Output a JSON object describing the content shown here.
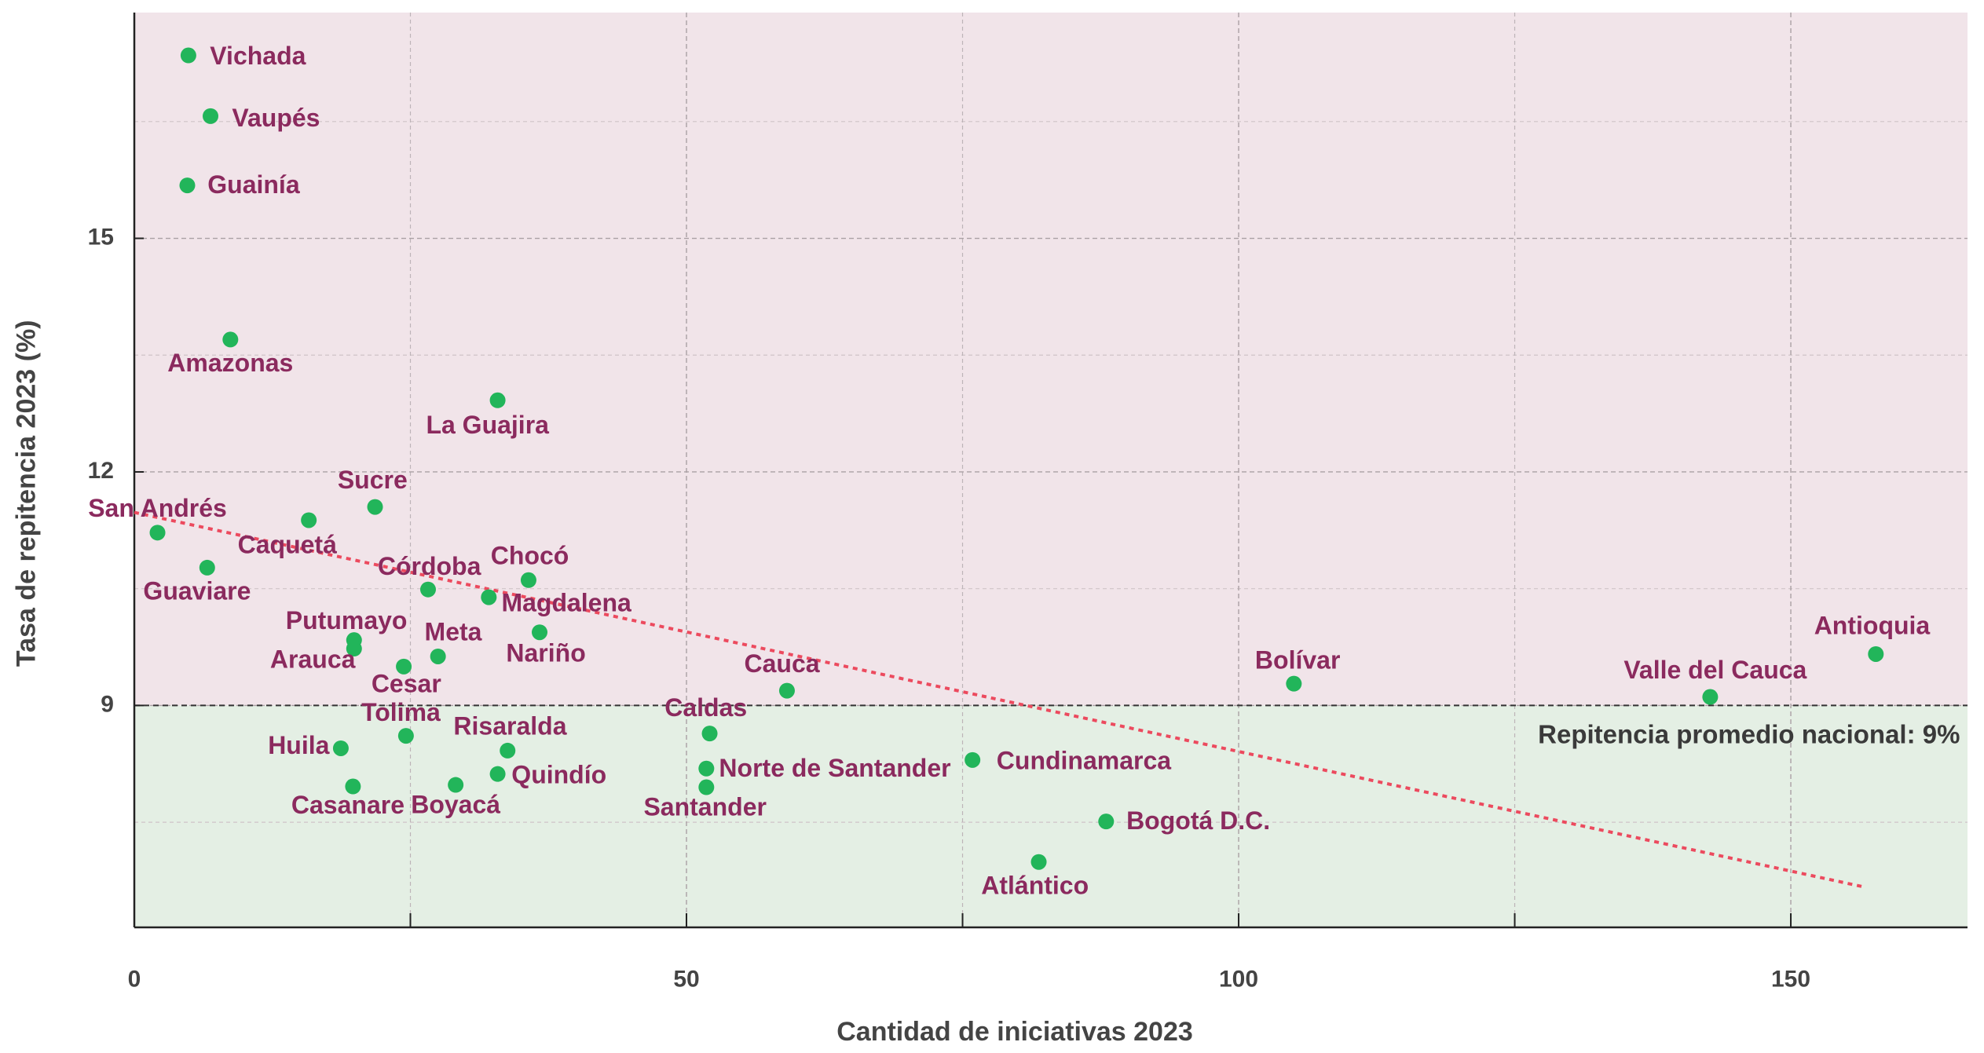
{
  "chart_data": {
    "type": "scatter",
    "x_label": "Cantidad de iniciativas 2023",
    "y_label": "Tasa de repitencia 2023 (%)",
    "labels": [
      "Vichada",
      "Vaupés",
      "Guainía",
      "Amazonas",
      "La Guajira",
      "Sucre",
      "San Andrés",
      "Caquetá",
      "Guaviare",
      "Córdoba",
      "Chocó",
      "Magdalena",
      "Nariño",
      "Putumayo",
      "Arauca",
      "Meta",
      "Cesar",
      "Cauca",
      "Bolívar",
      "Valle del Cauca",
      "Antioquia",
      "Tolima",
      "Caldas",
      "Risaralda",
      "Huila",
      "Quindío",
      "Norte de Santander",
      "Cundinamarca",
      "Casanare",
      "Boyacá",
      "Santander",
      "Bogotá D.C.",
      "Atlántico"
    ],
    "x": [
      4.9,
      6.9,
      4.8,
      8.7,
      32.9,
      21.8,
      2.1,
      15.8,
      6.6,
      26.6,
      35.7,
      32.1,
      36.7,
      19.9,
      19.9,
      27.5,
      24.4,
      59.1,
      105.0,
      142.7,
      157.7,
      24.6,
      52.1,
      33.8,
      18.7,
      32.9,
      51.8,
      75.9,
      19.8,
      29.1,
      51.8,
      88.0,
      81.9
    ],
    "values": [
      17.35,
      16.57,
      15.68,
      13.7,
      12.92,
      11.55,
      11.22,
      11.38,
      10.77,
      10.49,
      10.61,
      10.39,
      9.94,
      9.84,
      9.73,
      9.63,
      9.5,
      9.19,
      9.28,
      9.11,
      9.66,
      8.61,
      8.64,
      8.42,
      8.45,
      8.12,
      8.19,
      8.3,
      7.96,
      7.98,
      7.95,
      7.51,
      6.99
    ],
    "color": "#22b55a",
    "label_color": "#8b2a5e",
    "xlim": [
      0,
      166
    ],
    "ylim": [
      6.15,
      17.9
    ],
    "xticks": [
      0,
      50,
      100,
      150
    ],
    "x_minor_ticks": [
      25,
      75,
      125
    ],
    "yticks": [
      9,
      12,
      15
    ],
    "y_minor_ticks": [
      7.5,
      10.5,
      13.5,
      16.5
    ],
    "grid": true,
    "reference_line": {
      "value": 9,
      "label": "Repitencia promedio nacional: 9%",
      "above_color": "#f1e4e9",
      "below_color": "#e4efe4"
    },
    "trendline": {
      "x": [
        0,
        156.6
      ],
      "values": [
        11.48,
        6.67
      ],
      "color": "#ec4a5e"
    }
  }
}
